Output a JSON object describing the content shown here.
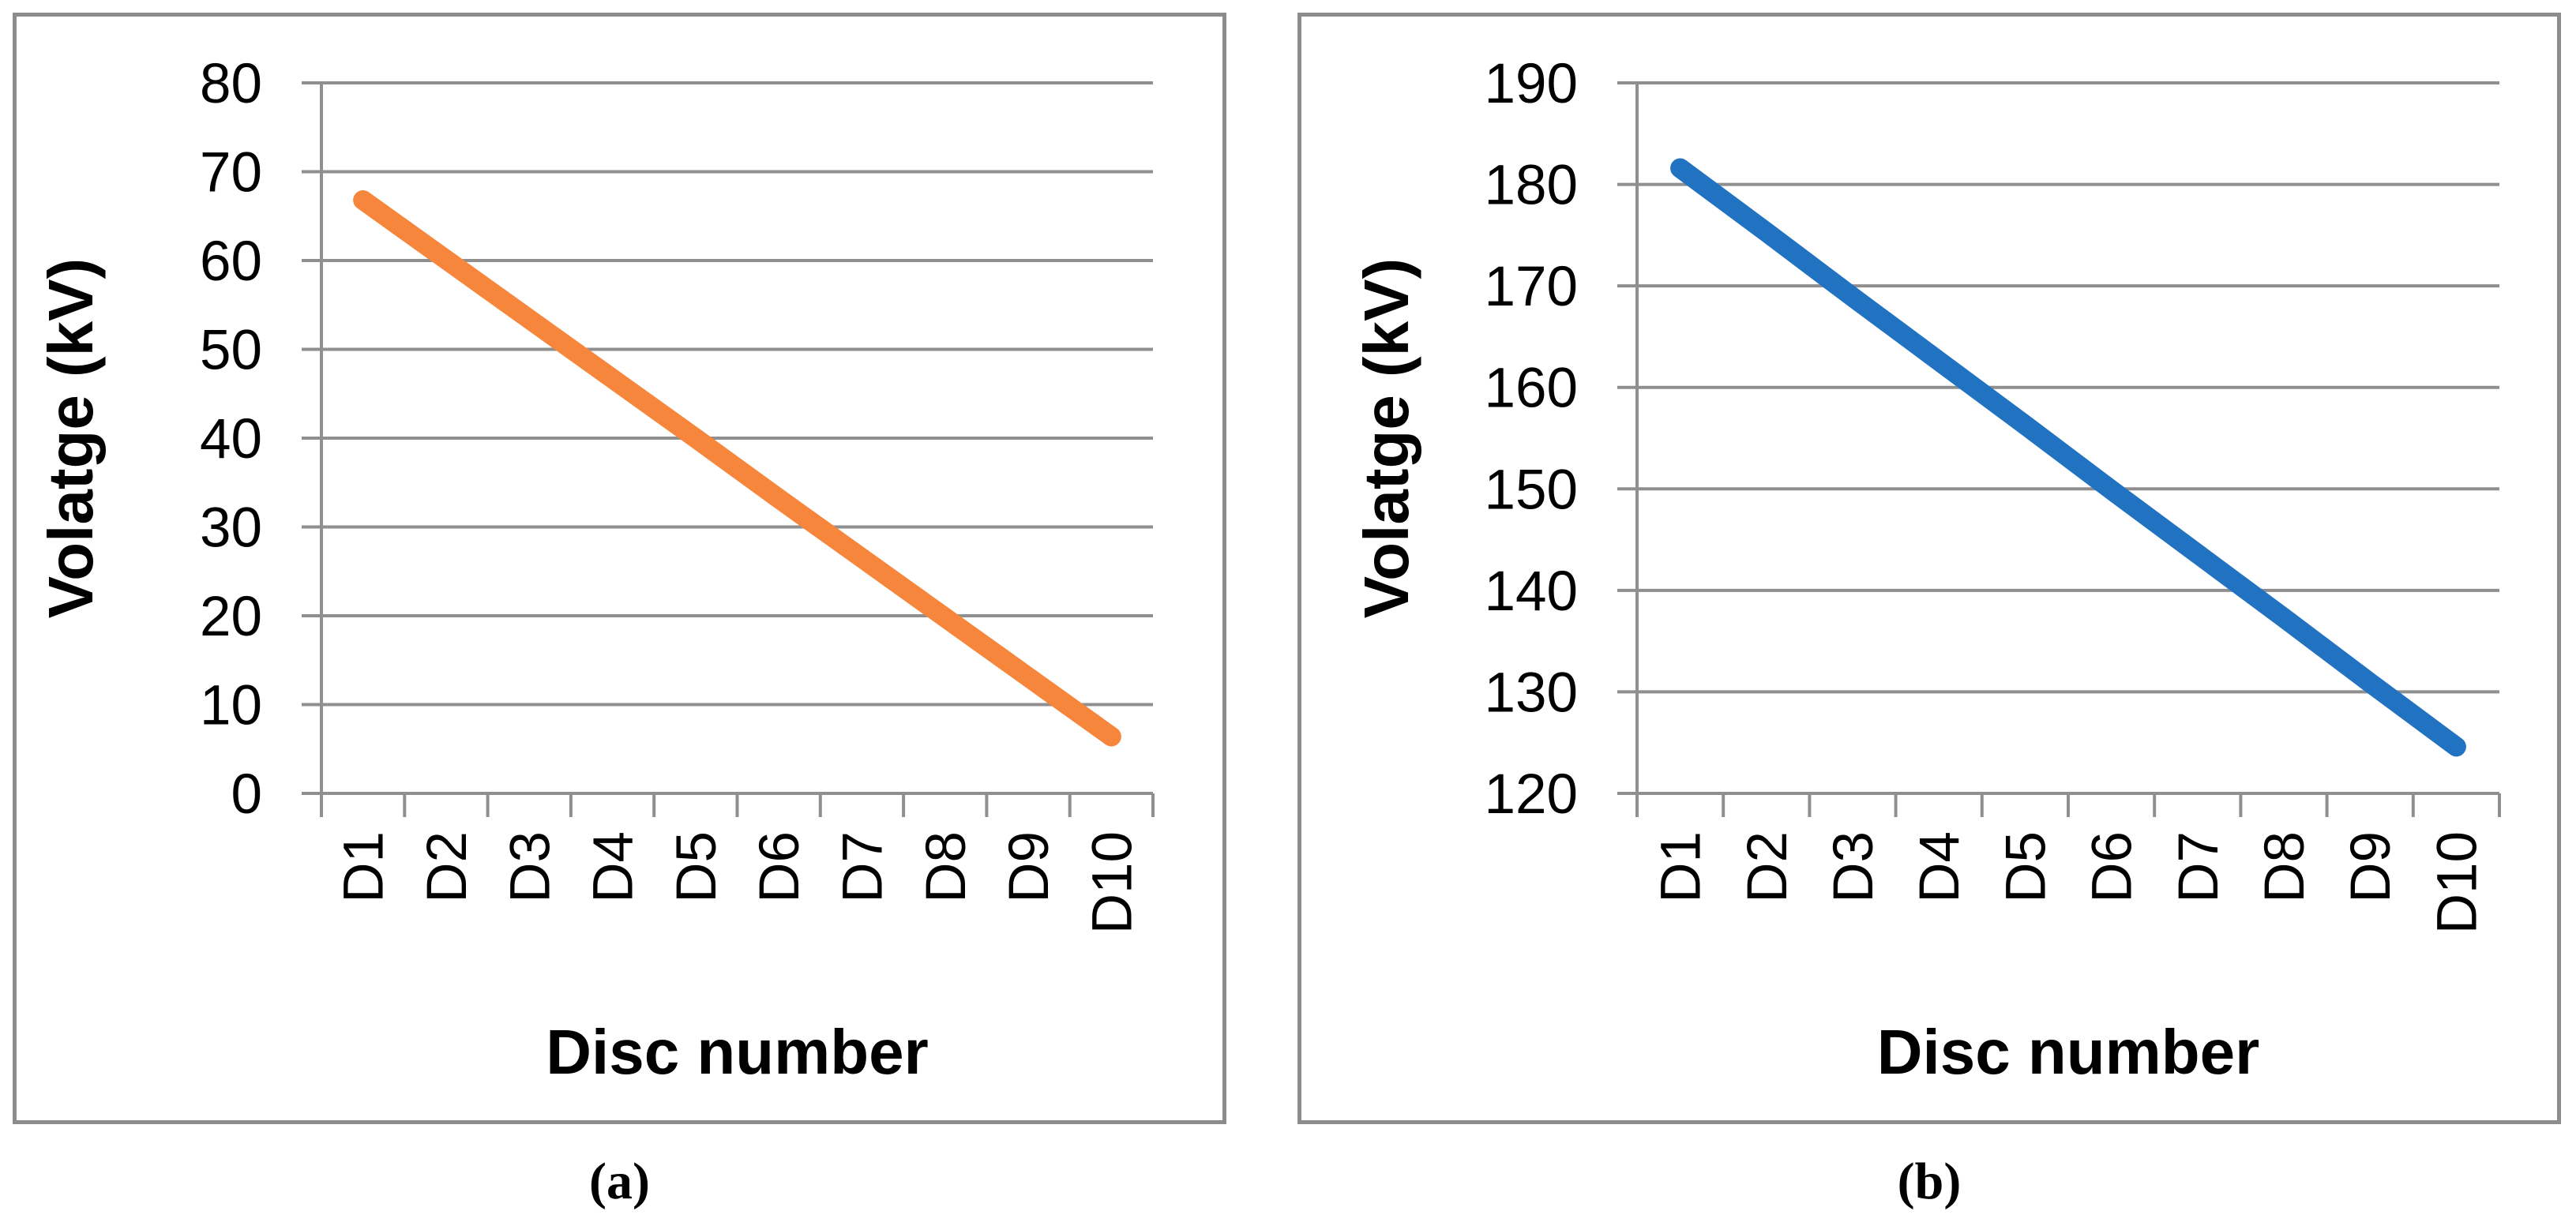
{
  "figure": {
    "background": "#FFFFFF",
    "panel_border_color": "#8C8C8C",
    "gridline_color": "#8F8F8F",
    "text_color": "#000000"
  },
  "chart_data": [
    {
      "type": "line",
      "panel_label": "(a)",
      "title": "",
      "xlabel": "Disc number",
      "ylabel": "Volatge (kV)",
      "categories": [
        "D1",
        "D2",
        "D3",
        "D4",
        "D5",
        "D6",
        "D7",
        "D8",
        "D9",
        "D10"
      ],
      "values": [
        66.8,
        60.1,
        53.4,
        46.7,
        40.0,
        33.2,
        26.5,
        19.8,
        13.1,
        6.4
      ],
      "ylim": [
        0,
        80
      ],
      "ytick_step": 10,
      "yticks": [
        0,
        10,
        20,
        30,
        40,
        50,
        60,
        70,
        80
      ],
      "line_color": "#F6863B",
      "grid": true,
      "legend": "none"
    },
    {
      "type": "line",
      "panel_label": "(b)",
      "title": "",
      "xlabel": "Disc number",
      "ylabel": "Volatge (kV)",
      "categories": [
        "D1",
        "D2",
        "D3",
        "D4",
        "D5",
        "D6",
        "D7",
        "D8",
        "D9",
        "D10"
      ],
      "values": [
        181.6,
        175.3,
        168.9,
        162.6,
        156.3,
        149.9,
        143.6,
        137.3,
        130.9,
        124.6
      ],
      "ylim": [
        120,
        190
      ],
      "ytick_step": 10,
      "yticks": [
        120,
        130,
        140,
        150,
        160,
        170,
        180,
        190
      ],
      "line_color": "#2173C2",
      "grid": true,
      "legend": "none"
    }
  ]
}
